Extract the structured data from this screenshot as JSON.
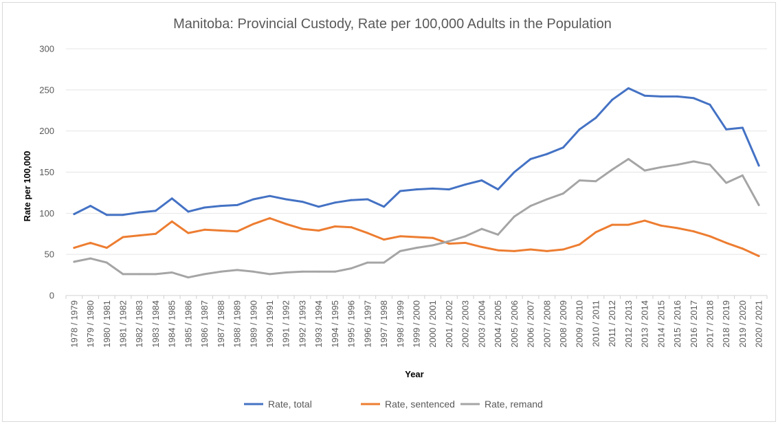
{
  "chart_data": {
    "type": "line",
    "title": "Manitoba: Provincial Custody, Rate per 100,000 Adults in the Population",
    "xlabel": "Year",
    "ylabel": "Rate per 100,000",
    "ylim": [
      0,
      300
    ],
    "yticks": [
      "0",
      "50",
      "100",
      "150",
      "200",
      "250",
      "300"
    ],
    "grid": true,
    "legend_position": "bottom",
    "categories": [
      "1978 / 1979",
      "1979 / 1980",
      "1980 / 1981",
      "1981 / 1982",
      "1982 / 1983",
      "1983 / 1984",
      "1984 / 1985",
      "1985 / 1986",
      "1986 / 1987",
      "1987 / 1988",
      "1988 / 1989",
      "1989 / 1990",
      "1990 / 1991",
      "1991 / 1992",
      "1992 / 1993",
      "1993 / 1994",
      "1994 / 1995",
      "1995 / 1996",
      "1996 / 1997",
      "1997 / 1998",
      "1998 / 1999",
      "1999 / 2000",
      "2000 / 2001",
      "2001 / 2002",
      "2002 / 2003",
      "2003 / 2004",
      "2004 / 2005",
      "2005 / 2006",
      "2006 / 2007",
      "2007 / 2008",
      "2008 / 2009",
      "2009 / 2010",
      "2010 / 2011",
      "2011 / 2012",
      "2012 / 2013",
      "2013 / 2014",
      "2014 / 2015",
      "2015 / 2016",
      "2016 / 2017",
      "2017 / 2018",
      "2018 / 2019",
      "2019 / 2020",
      "2020 / 2021"
    ],
    "series": [
      {
        "name": "Rate, total",
        "color": "#4472c4",
        "values": [
          99,
          109,
          98,
          98,
          101,
          103,
          118,
          102,
          107,
          109,
          110,
          117,
          121,
          117,
          114,
          108,
          113,
          116,
          117,
          108,
          127,
          129,
          130,
          129,
          135,
          140,
          129,
          150,
          166,
          172,
          180,
          202,
          216,
          238,
          252,
          243,
          242,
          242,
          240,
          232,
          202,
          204,
          158
        ]
      },
      {
        "name": "Rate, sentenced",
        "color": "#ed7d31",
        "values": [
          58,
          64,
          58,
          71,
          73,
          75,
          90,
          76,
          80,
          79,
          78,
          87,
          94,
          87,
          81,
          79,
          84,
          83,
          76,
          68,
          72,
          71,
          70,
          63,
          64,
          59,
          55,
          54,
          56,
          54,
          56,
          62,
          77,
          86,
          86,
          91,
          85,
          82,
          78,
          72,
          64,
          57,
          48
        ]
      },
      {
        "name": "Rate, remand",
        "color": "#a5a5a5",
        "values": [
          41,
          45,
          40,
          26,
          26,
          26,
          28,
          22,
          26,
          29,
          31,
          29,
          26,
          28,
          29,
          29,
          29,
          33,
          40,
          40,
          54,
          58,
          61,
          66,
          72,
          81,
          74,
          96,
          109,
          117,
          124,
          140,
          139,
          153,
          166,
          152,
          156,
          159,
          163,
          159,
          137,
          146,
          110
        ]
      }
    ]
  }
}
